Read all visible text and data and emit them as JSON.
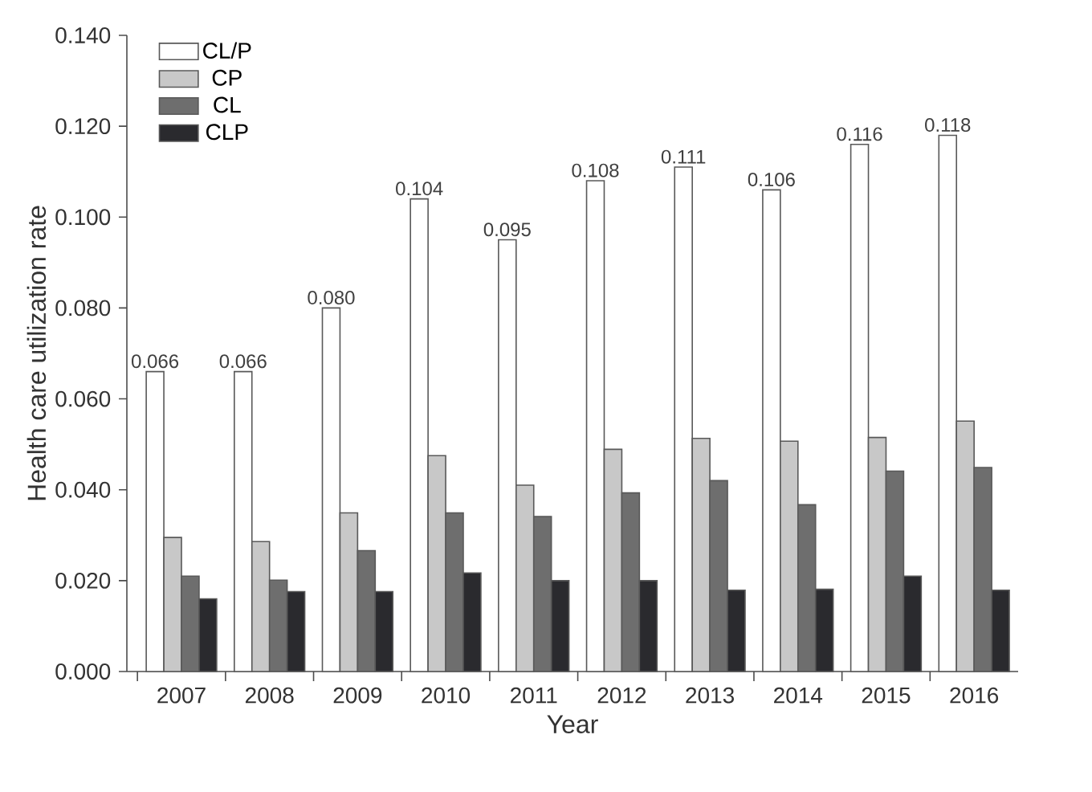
{
  "chart_data": {
    "type": "bar",
    "xlabel": "Year",
    "ylabel": "Health care utilization rate",
    "categories": [
      "2007",
      "2008",
      "2009",
      "2010",
      "2011",
      "2012",
      "2013",
      "2014",
      "2015",
      "2016"
    ],
    "series": [
      {
        "name": "CL/P",
        "color": "#ffffff",
        "values": [
          0.066,
          0.066,
          0.08,
          0.104,
          0.095,
          0.108,
          0.111,
          0.106,
          0.116,
          0.118
        ],
        "value_labels": [
          "0.066",
          "0.066",
          "0.080",
          "0.104",
          "0.095",
          "0.108",
          "0.111",
          "0.106",
          "0.116",
          "0.118"
        ]
      },
      {
        "name": "CP",
        "color": "#c8c8c8",
        "values": [
          0.0295,
          0.0286,
          0.0349,
          0.0475,
          0.041,
          0.0489,
          0.0513,
          0.0507,
          0.0515,
          0.0551
        ]
      },
      {
        "name": "CL",
        "color": "#6e6e6e",
        "values": [
          0.021,
          0.0201,
          0.0266,
          0.0349,
          0.0341,
          0.0393,
          0.042,
          0.0367,
          0.0441,
          0.0449
        ]
      },
      {
        "name": "CLP",
        "color": "#2a2a2e",
        "values": [
          0.016,
          0.0176,
          0.0176,
          0.0217,
          0.02,
          0.02,
          0.0179,
          0.0181,
          0.021,
          0.0179
        ]
      }
    ],
    "ylim": [
      0,
      0.14
    ],
    "yticks": [
      {
        "value": 0,
        "label": "0.000"
      },
      {
        "value": 0.02,
        "label": "0.020"
      },
      {
        "value": 0.04,
        "label": "0.040"
      },
      {
        "value": 0.06,
        "label": "0.060"
      },
      {
        "value": 0.08,
        "label": "0.080"
      },
      {
        "value": 0.1,
        "label": "0.100"
      },
      {
        "value": 0.12,
        "label": "0.120"
      },
      {
        "value": 0.14,
        "label": "0.140"
      }
    ],
    "grid": false,
    "legend": "top left"
  }
}
